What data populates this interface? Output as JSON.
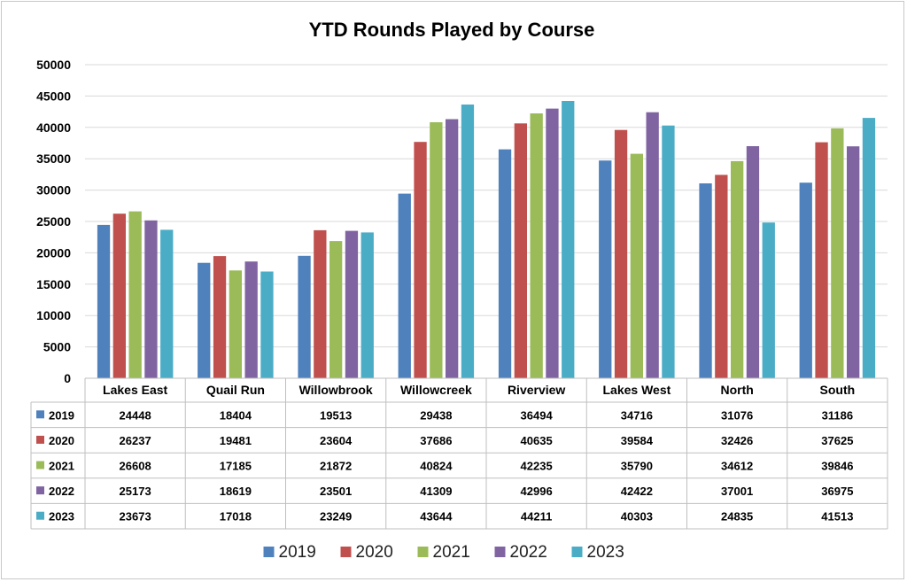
{
  "chart_data": {
    "type": "bar",
    "title": "YTD Rounds Played by Course",
    "xlabel": "",
    "ylabel": "",
    "ylim": [
      0,
      50000
    ],
    "yticks": [
      0,
      5000,
      10000,
      15000,
      20000,
      25000,
      30000,
      35000,
      40000,
      45000,
      50000
    ],
    "grid": true,
    "legend_position": "bottom",
    "data_table": true,
    "categories": [
      "Lakes East",
      "Quail Run",
      "Willowbrook",
      "Willowcreek",
      "Riverview",
      "Lakes West",
      "North",
      "South"
    ],
    "series": [
      {
        "name": "2019",
        "color": "#4f81bd",
        "values": [
          24448,
          18404,
          19513,
          29438,
          36494,
          34716,
          31076,
          31186
        ]
      },
      {
        "name": "2020",
        "color": "#c0504d",
        "values": [
          26237,
          19481,
          23604,
          37686,
          40635,
          39584,
          32426,
          37625
        ]
      },
      {
        "name": "2021",
        "color": "#9bbb59",
        "values": [
          26608,
          17185,
          21872,
          40824,
          42235,
          35790,
          34612,
          39846
        ]
      },
      {
        "name": "2022",
        "color": "#8064a2",
        "values": [
          25173,
          18619,
          23501,
          41309,
          42996,
          42422,
          37001,
          36975
        ]
      },
      {
        "name": "2023",
        "color": "#4bacc6",
        "values": [
          23673,
          17018,
          23249,
          43644,
          44211,
          40303,
          24835,
          41513
        ]
      }
    ]
  }
}
